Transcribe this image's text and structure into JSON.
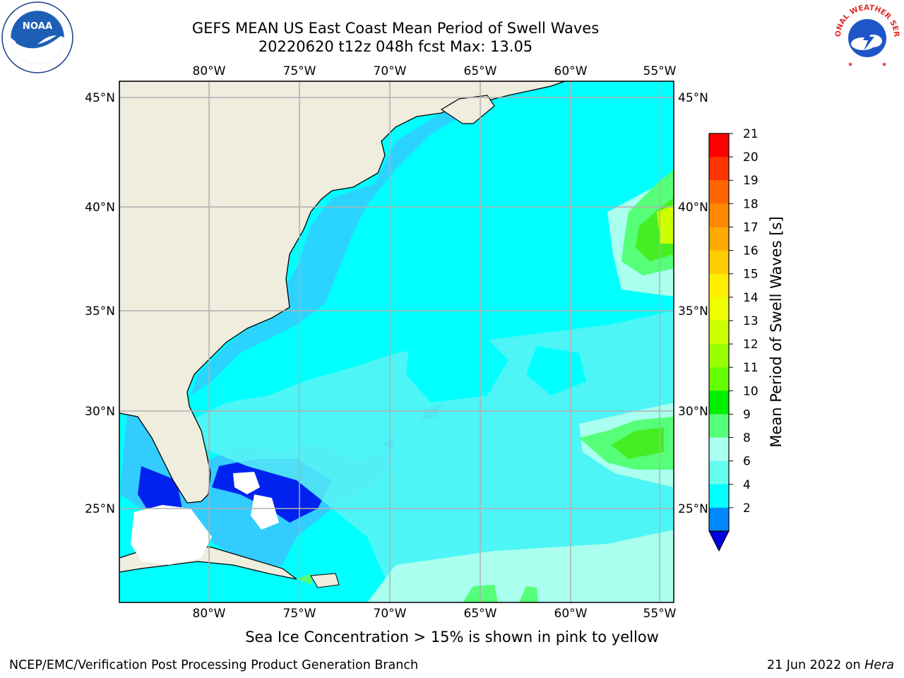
{
  "header": {
    "title_line1": "GEFS MEAN US East Coast Mean Period of Swell Waves",
    "title_line2": "20220620 t12z 048h fcst   Max: 13.05"
  },
  "logos": {
    "left": "NOAA",
    "right": "NATIONAL WEATHER SERVICE"
  },
  "map": {
    "lon_ticks": [
      "80°W",
      "75°W",
      "70°W",
      "65°W",
      "60°W",
      "55°W"
    ],
    "lat_ticks": [
      "45°N",
      "40°N",
      "35°N",
      "30°N",
      "25°N"
    ],
    "lon_range": [
      -85,
      -54.2
    ],
    "lat_range": [
      20,
      45.8
    ],
    "land_color": "#eeedde",
    "grid_color": "#b0b0b0"
  },
  "colorbar": {
    "label": "Mean Period of Swell Waves [s]",
    "ticks": [
      "21",
      "20",
      "19",
      "18",
      "17",
      "16",
      "15",
      "14",
      "13",
      "12",
      "11",
      "10",
      "9",
      "8",
      "6",
      "4",
      "2"
    ],
    "colors": [
      "#ff0000",
      "#ff3300",
      "#ff6600",
      "#ff8800",
      "#ffaa00",
      "#ffcc00",
      "#ffee00",
      "#eeff00",
      "#ccff00",
      "#99ff00",
      "#66ff00",
      "#00ee00",
      "#55ff77",
      "#aaffee",
      "#66ffee",
      "#00ffff",
      "#0088ff"
    ],
    "extend_color": "#0000dd"
  },
  "caption": "Sea Ice Concentration > 15% is shown in pink to yellow",
  "footer": {
    "left": "NCEP/EMC/Verification Post Processing Product Generation Branch",
    "date": "21 Jun 2022 on ",
    "host": "Hera"
  }
}
